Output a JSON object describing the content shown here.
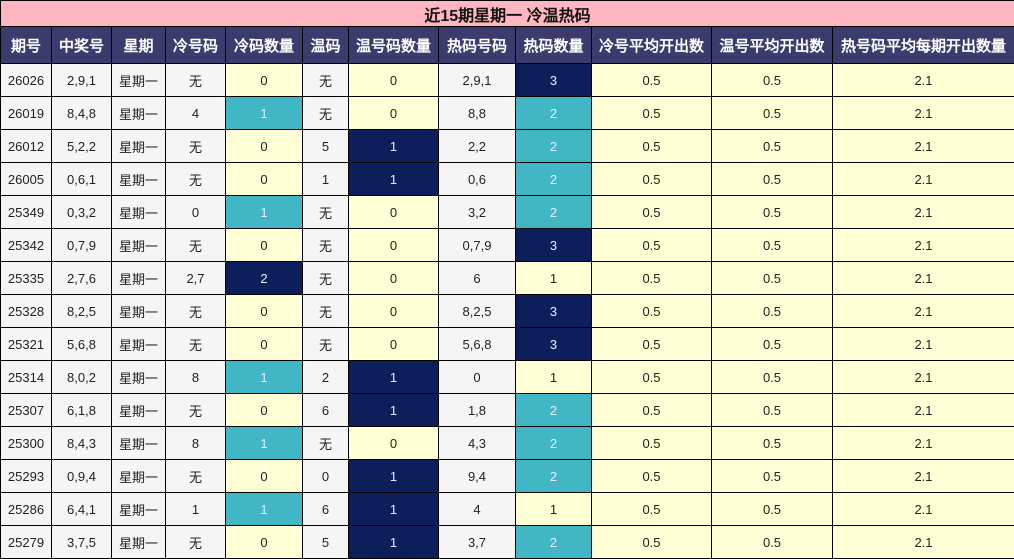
{
  "title": "近15期星期一 冷温热码",
  "headers": [
    "期号",
    "中奖号",
    "星期",
    "冷号码",
    "冷码数量",
    "温码",
    "温号码数量",
    "热码号码",
    "热码数量",
    "冷号平均开出数",
    "温号平均开出数",
    "热号码平均每期开出数量"
  ],
  "colors": {
    "title_bg": "#ffb6c1",
    "header_bg": "#3b3b6e",
    "cell_bg": "#f5f5f5",
    "yellow": "#ffffd5",
    "teal": "#41b6c4",
    "navy": "#0c1f5a"
  },
  "count_colors": {
    "cold": {
      "0": "#ffffd5",
      "1": "#41b6c4",
      "2": "#0c1f5a"
    },
    "warm": {
      "0": "#ffffd5",
      "1": "#0c1f5a"
    },
    "hot": {
      "1": "#ffffd5",
      "2": "#41b6c4",
      "3": "#0c1f5a"
    }
  },
  "rows": [
    [
      "26026",
      "2,9,1",
      "星期一",
      "无",
      "0",
      "无",
      "0",
      "2,9,1",
      "3",
      "0.5",
      "0.5",
      "2.1"
    ],
    [
      "26019",
      "8,4,8",
      "星期一",
      "4",
      "1",
      "无",
      "0",
      "8,8",
      "2",
      "0.5",
      "0.5",
      "2.1"
    ],
    [
      "26012",
      "5,2,2",
      "星期一",
      "无",
      "0",
      "5",
      "1",
      "2,2",
      "2",
      "0.5",
      "0.5",
      "2.1"
    ],
    [
      "26005",
      "0,6,1",
      "星期一",
      "无",
      "0",
      "1",
      "1",
      "0,6",
      "2",
      "0.5",
      "0.5",
      "2.1"
    ],
    [
      "25349",
      "0,3,2",
      "星期一",
      "0",
      "1",
      "无",
      "0",
      "3,2",
      "2",
      "0.5",
      "0.5",
      "2.1"
    ],
    [
      "25342",
      "0,7,9",
      "星期一",
      "无",
      "0",
      "无",
      "0",
      "0,7,9",
      "3",
      "0.5",
      "0.5",
      "2.1"
    ],
    [
      "25335",
      "2,7,6",
      "星期一",
      "2,7",
      "2",
      "无",
      "0",
      "6",
      "1",
      "0.5",
      "0.5",
      "2.1"
    ],
    [
      "25328",
      "8,2,5",
      "星期一",
      "无",
      "0",
      "无",
      "0",
      "8,2,5",
      "3",
      "0.5",
      "0.5",
      "2.1"
    ],
    [
      "25321",
      "5,6,8",
      "星期一",
      "无",
      "0",
      "无",
      "0",
      "5,6,8",
      "3",
      "0.5",
      "0.5",
      "2.1"
    ],
    [
      "25314",
      "8,0,2",
      "星期一",
      "8",
      "1",
      "2",
      "1",
      "0",
      "1",
      "0.5",
      "0.5",
      "2.1"
    ],
    [
      "25307",
      "6,1,8",
      "星期一",
      "无",
      "0",
      "6",
      "1",
      "1,8",
      "2",
      "0.5",
      "0.5",
      "2.1"
    ],
    [
      "25300",
      "8,4,3",
      "星期一",
      "8",
      "1",
      "无",
      "0",
      "4,3",
      "2",
      "0.5",
      "0.5",
      "2.1"
    ],
    [
      "25293",
      "0,9,4",
      "星期一",
      "无",
      "0",
      "0",
      "1",
      "9,4",
      "2",
      "0.5",
      "0.5",
      "2.1"
    ],
    [
      "25286",
      "6,4,1",
      "星期一",
      "1",
      "1",
      "6",
      "1",
      "4",
      "1",
      "0.5",
      "0.5",
      "2.1"
    ],
    [
      "25279",
      "3,7,5",
      "星期一",
      "无",
      "0",
      "5",
      "1",
      "3,7",
      "2",
      "0.5",
      "0.5",
      "2.1"
    ]
  ]
}
